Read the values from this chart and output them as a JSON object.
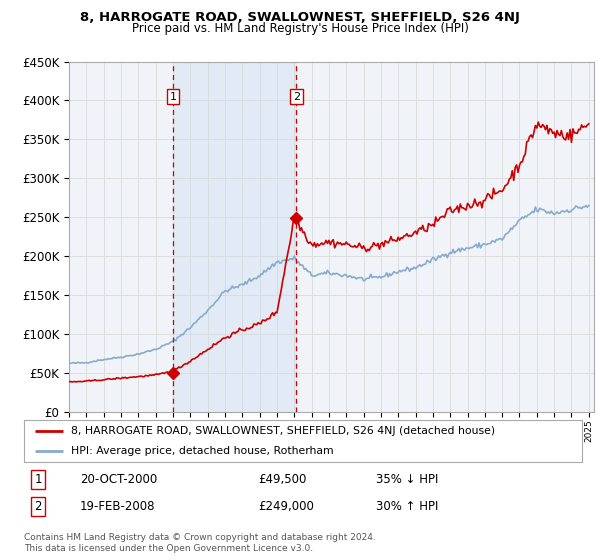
{
  "title": "8, HARROGATE ROAD, SWALLOWNEST, SHEFFIELD, S26 4NJ",
  "subtitle": "Price paid vs. HM Land Registry's House Price Index (HPI)",
  "ylim": [
    0,
    450000
  ],
  "xlim_start": 1995.0,
  "xlim_end": 2025.3,
  "sale1_x": 2001.0,
  "sale1_y": 49500,
  "sale2_x": 2008.12,
  "sale2_y": 249000,
  "sale1_date": "20-OCT-2000",
  "sale1_price": "£49,500",
  "sale1_hpi": "35% ↓ HPI",
  "sale2_date": "19-FEB-2008",
  "sale2_price": "£249,000",
  "sale2_hpi": "30% ↑ HPI",
  "red_line_color": "#cc0000",
  "blue_line_color": "#88aacc",
  "marker_color": "#cc0000",
  "vline_color": "#cc0000",
  "background_color": "#ffffff",
  "grid_color": "#dddddd",
  "shade_color": "#ddeeff",
  "legend_line1": "8, HARROGATE ROAD, SWALLOWNEST, SHEFFIELD, S26 4NJ (detached house)",
  "legend_line2": "HPI: Average price, detached house, Rotherham",
  "footer": "Contains HM Land Registry data © Crown copyright and database right 2024.\nThis data is licensed under the Open Government Licence v3.0.",
  "chart_bg": "#f0f4f8"
}
